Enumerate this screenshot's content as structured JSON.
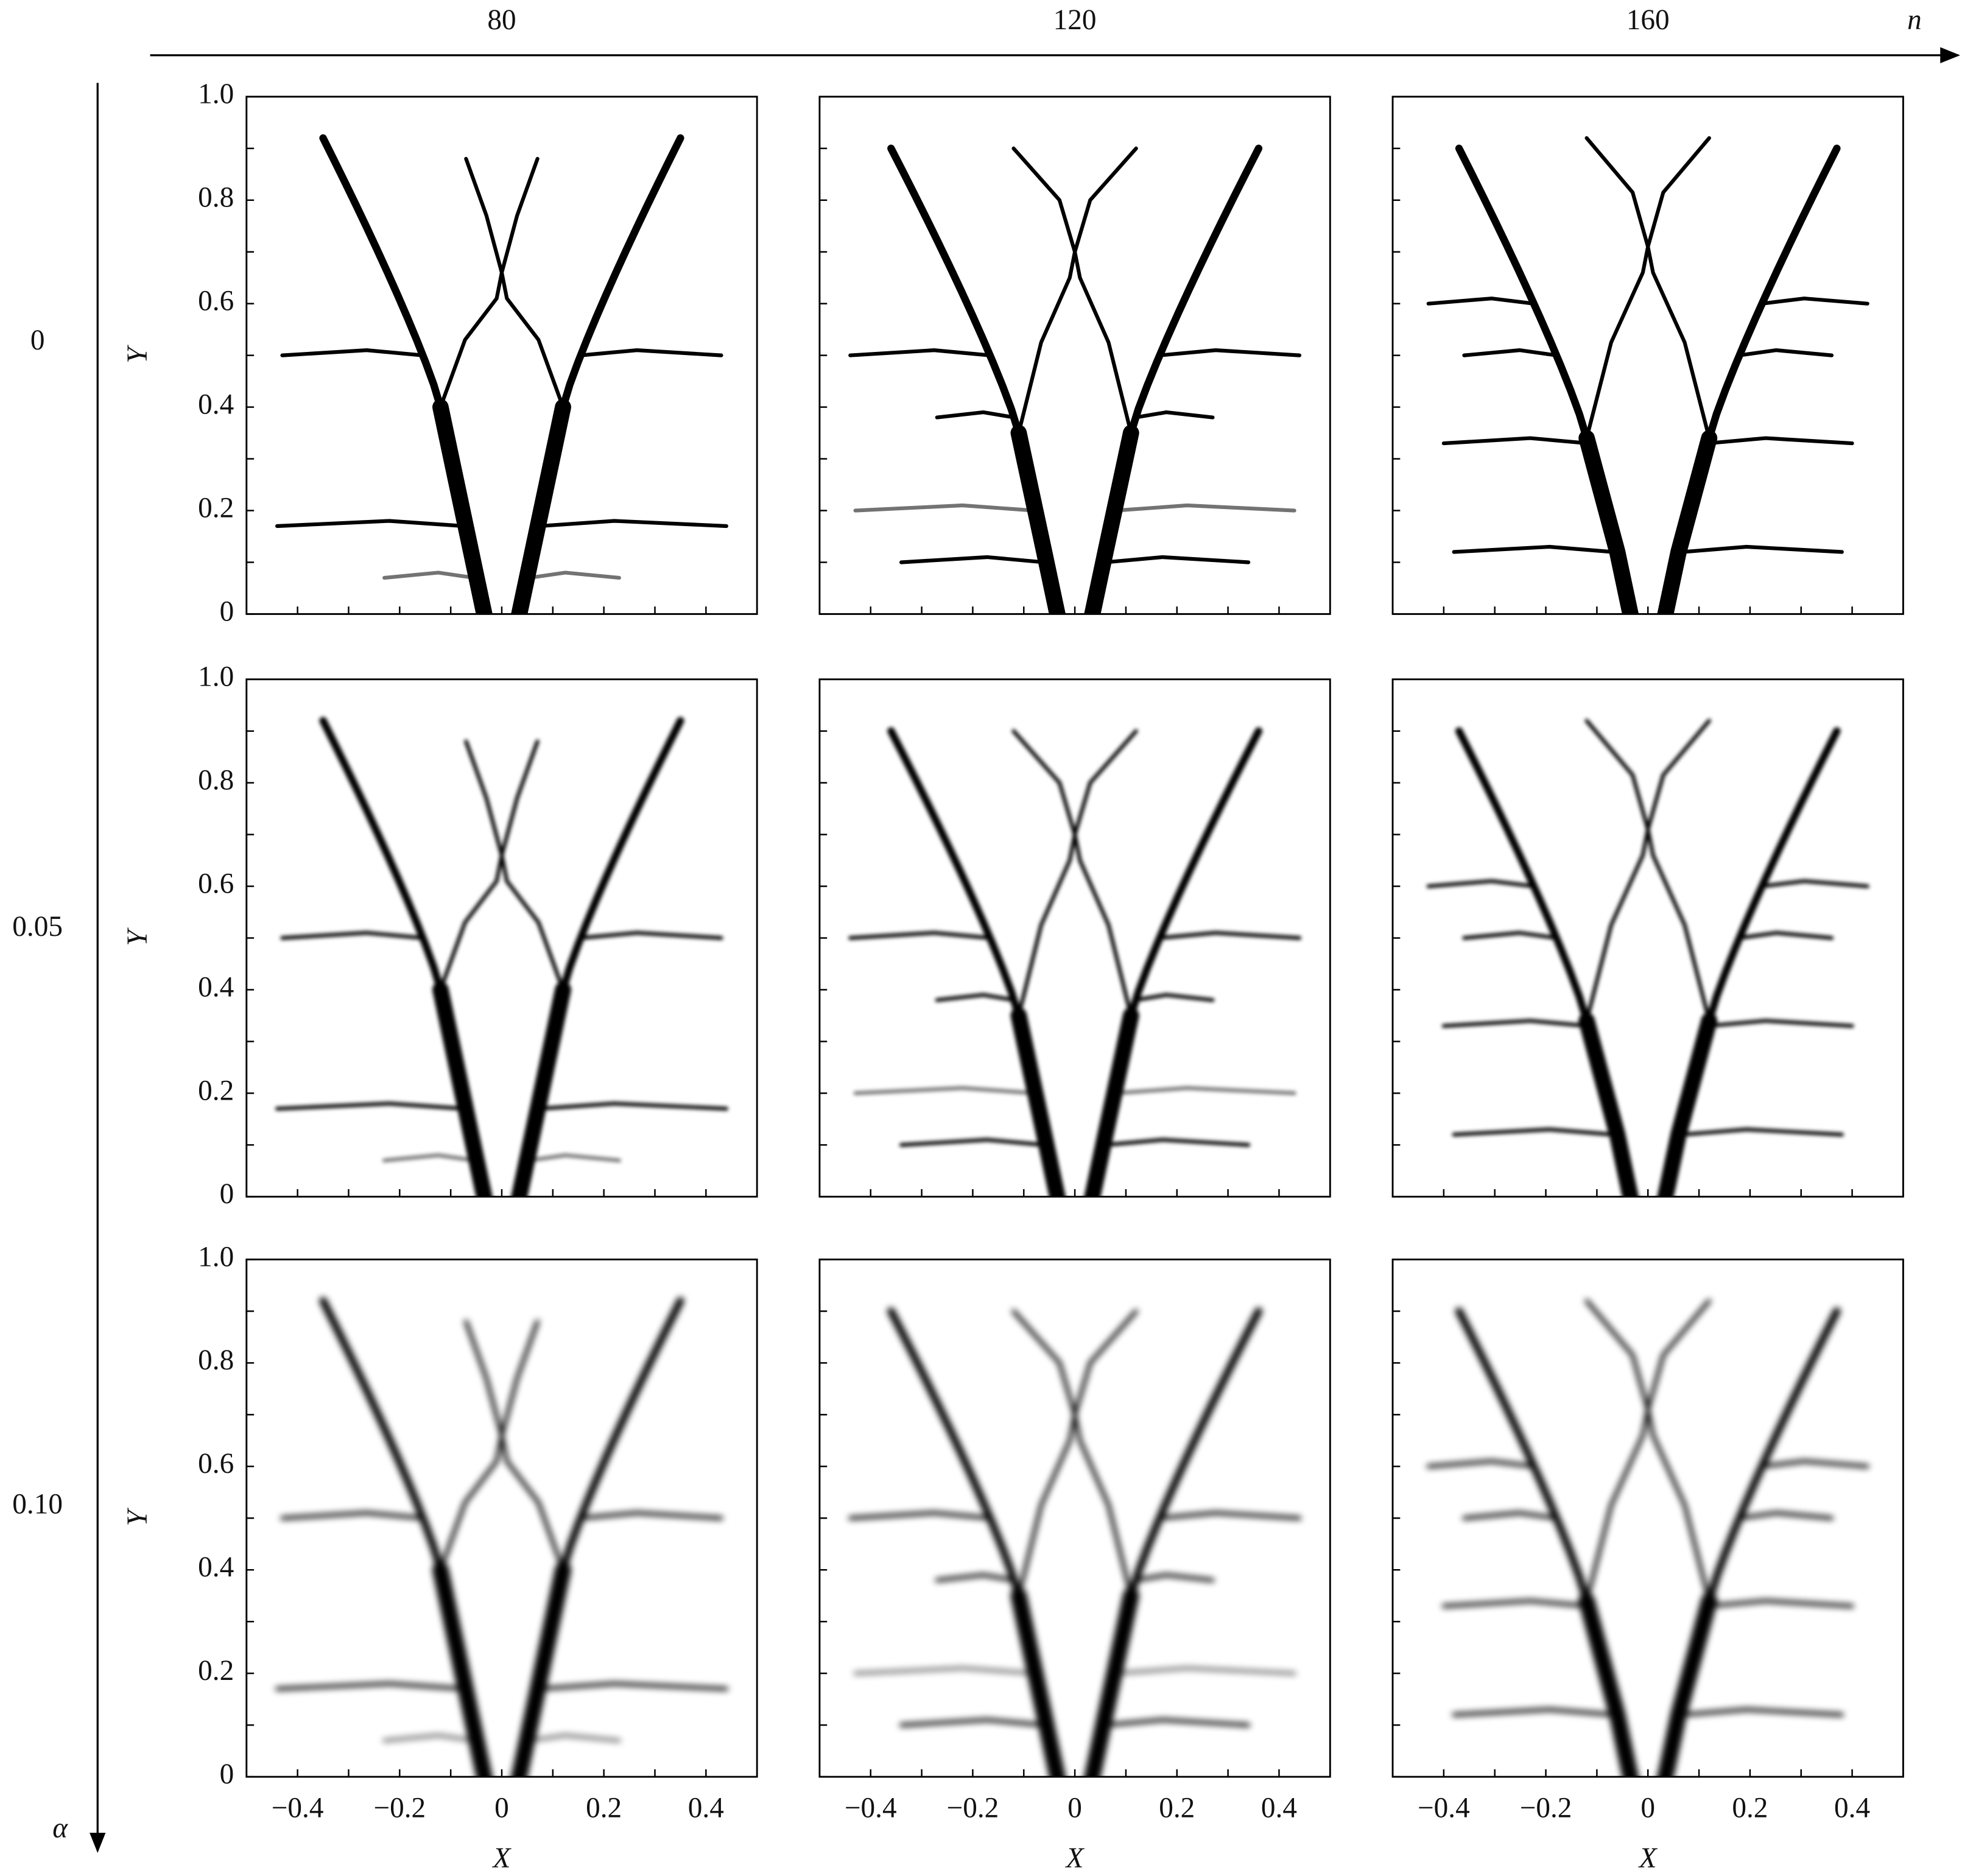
{
  "header": {
    "n_label": "n",
    "n_values": [
      "80",
      "120",
      "160"
    ],
    "alpha_label": "α",
    "alpha_values": [
      "0",
      "0.05",
      "0.10"
    ]
  },
  "axes": {
    "xlabel": "X",
    "ylabel": "Y",
    "xlim": [
      -0.5,
      0.5
    ],
    "ylim": [
      0,
      1
    ],
    "xticks": [
      {
        "value": -0.4,
        "label": "−0.4"
      },
      {
        "value": -0.2,
        "label": "−0.2"
      },
      0,
      0.2,
      0.4
    ],
    "xminorticks": [
      -0.3,
      -0.1,
      0.1,
      0.3
    ],
    "yticks": [
      0,
      0.2,
      0.4,
      0.6,
      0.8,
      {
        "value": 1,
        "label": "1.0"
      }
    ],
    "yminorticks": [
      0.1,
      0.3,
      0.5,
      0.7,
      0.9
    ]
  }
}
